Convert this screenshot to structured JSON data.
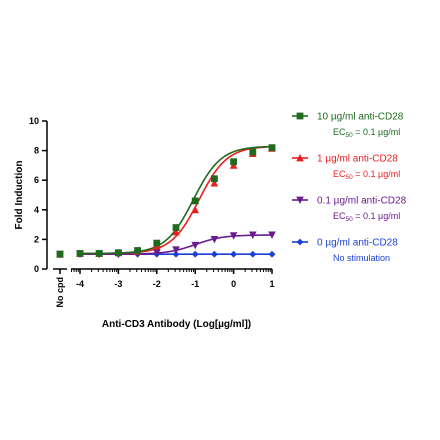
{
  "chart_data": {
    "type": "line",
    "ylabel": "Fold Induction",
    "xlabel": "Anti-CD3 Antibody (Log[µg/ml])",
    "xlim": [
      -4.5,
      1
    ],
    "ylim": [
      0,
      10
    ],
    "x_ticks": [
      -4,
      -3,
      -2,
      -1,
      0,
      1
    ],
    "y_ticks": [
      0,
      2,
      4,
      6,
      8,
      10
    ],
    "no_cpd_label": "No cpd",
    "grid": false,
    "legend_position": "right",
    "series": [
      {
        "name": "10 µg/ml anti-CD28",
        "note": "EC",
        "note_sub": "50",
        "note_rest": " = 0.1 µg/ml",
        "color": "#1e6b1e",
        "marker": "square",
        "no_cpd_value": 1.0,
        "x": [
          -4,
          -3.5,
          -3,
          -2.5,
          -2,
          -1.5,
          -1,
          -0.5,
          0,
          0.5,
          1
        ],
        "y": [
          1.05,
          1.05,
          1.1,
          1.25,
          1.75,
          2.8,
          4.6,
          6.1,
          7.25,
          7.9,
          8.2
        ],
        "fit": {
          "bottom": 1.05,
          "top": 8.3,
          "logec50": -1.05,
          "hill": 1.2
        }
      },
      {
        "name": "1 µg/ml anti-CD28",
        "note": "EC",
        "note_sub": "50",
        "note_rest": " = 0.1 µg/ml",
        "color": "#e81f1f",
        "marker": "triangle-up",
        "no_cpd_value": 1.0,
        "x": [
          -4,
          -3.5,
          -3,
          -2.5,
          -2,
          -1.5,
          -1,
          -0.5,
          0,
          0.5,
          1
        ],
        "y": [
          1.05,
          1.05,
          1.1,
          1.2,
          1.55,
          2.5,
          4.0,
          5.8,
          7.0,
          7.8,
          8.15
        ],
        "fit": {
          "bottom": 1.05,
          "top": 8.3,
          "logec50": -0.9,
          "hill": 1.2
        }
      },
      {
        "name": "0.1 µg/ml anti-CD28",
        "note": "EC",
        "note_sub": "50",
        "note_rest": " = 0.1 µg/ml",
        "color": "#6a1b8f",
        "marker": "triangle-down",
        "no_cpd_value": 1.0,
        "x": [
          -4,
          -3.5,
          -3,
          -2.5,
          -2,
          -1.5,
          -1,
          -0.5,
          0,
          0.5,
          1
        ],
        "y": [
          1.0,
          1.0,
          1.0,
          1.05,
          1.1,
          1.3,
          1.6,
          2.0,
          2.25,
          2.3,
          2.3
        ],
        "fit": {
          "bottom": 1.0,
          "top": 2.3,
          "logec50": -1.0,
          "hill": 1.2
        }
      },
      {
        "name": "0 µg/ml anti-CD28",
        "note": "No stimulation",
        "note_sub": "",
        "note_rest": "",
        "color": "#1a3fd6",
        "marker": "diamond",
        "no_cpd_value": 1.0,
        "x": [
          -4,
          -3.5,
          -3,
          -2.5,
          -2,
          -1.5,
          -1,
          -0.5,
          0,
          0.5,
          1
        ],
        "y": [
          1.0,
          1.0,
          1.0,
          1.0,
          1.0,
          1.0,
          1.0,
          1.0,
          1.0,
          1.0,
          1.0
        ],
        "fit": {
          "bottom": 1.0,
          "top": 1.0,
          "logec50": -1.0,
          "hill": 1.0
        }
      }
    ]
  }
}
